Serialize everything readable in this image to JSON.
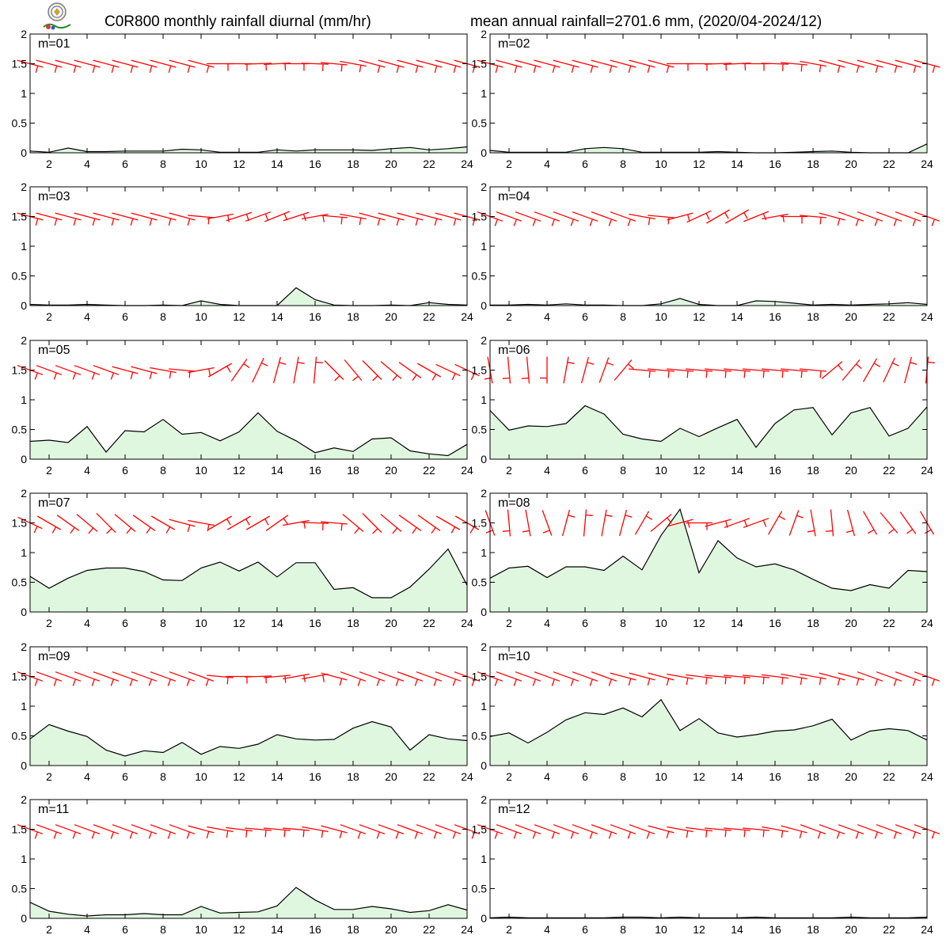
{
  "title_left": "C0R800 monthly rainfall diurnal (mm/hr)",
  "title_right": "mean annual rainfall=2701.6 mm, (2020/04-2024/12)",
  "colors": {
    "rain_fill": "#dff7df",
    "rain_line": "#000000",
    "wind": "#ff0000",
    "frame": "#000000"
  },
  "chart_data": [
    {
      "type": "area",
      "panel_label": "m=01",
      "x": [
        1,
        2,
        3,
        4,
        5,
        6,
        7,
        8,
        9,
        10,
        11,
        12,
        13,
        14,
        15,
        16,
        17,
        18,
        19,
        20,
        21,
        22,
        23,
        24
      ],
      "values": [
        0.03,
        0.01,
        0.08,
        0.02,
        0.02,
        0.03,
        0.03,
        0.03,
        0.06,
        0.05,
        0.01,
        0.01,
        0.01,
        0.05,
        0.03,
        0.05,
        0.05,
        0.05,
        0.04,
        0.07,
        0.09,
        0.05,
        0.07,
        0.1
      ],
      "ylim": [
        0,
        2
      ],
      "xlim": [
        1,
        24
      ],
      "yticks": [
        0,
        0.5,
        1,
        1.5,
        2
      ],
      "xticks": [
        2,
        4,
        6,
        8,
        10,
        12,
        14,
        16,
        18,
        20,
        22,
        24
      ],
      "wind_dir": [
        105,
        105,
        105,
        105,
        105,
        105,
        105,
        105,
        105,
        105,
        90,
        90,
        88,
        87,
        90,
        92,
        95,
        100,
        105,
        105,
        105,
        105,
        105,
        105
      ]
    },
    {
      "type": "area",
      "panel_label": "m=02",
      "x": [
        1,
        2,
        3,
        4,
        5,
        6,
        7,
        8,
        9,
        10,
        11,
        12,
        13,
        14,
        15,
        16,
        17,
        18,
        19,
        20,
        21,
        22,
        23,
        24
      ],
      "values": [
        0.04,
        0.01,
        0.01,
        0.01,
        0.01,
        0.07,
        0.09,
        0.07,
        0.01,
        0.01,
        0.01,
        0.01,
        0.02,
        0.01,
        0.0,
        0.0,
        0.01,
        0.02,
        0.03,
        0.01,
        0.0,
        0.0,
        0.0,
        0.15
      ],
      "ylim": [
        0,
        2
      ],
      "xlim": [
        1,
        24
      ],
      "yticks": [
        0,
        0.5,
        1,
        1.5,
        2
      ],
      "xticks": [
        2,
        4,
        6,
        8,
        10,
        12,
        14,
        16,
        18,
        20,
        22,
        24
      ],
      "wind_dir": [
        105,
        105,
        105,
        105,
        105,
        105,
        105,
        105,
        105,
        105,
        90,
        90,
        88,
        87,
        90,
        92,
        95,
        100,
        105,
        105,
        105,
        105,
        105,
        105
      ]
    },
    {
      "type": "area",
      "panel_label": "m=03",
      "x": [
        1,
        2,
        3,
        4,
        5,
        6,
        7,
        8,
        9,
        10,
        11,
        12,
        13,
        14,
        15,
        16,
        17,
        18,
        19,
        20,
        21,
        22,
        23,
        24
      ],
      "values": [
        0.02,
        0.01,
        0.01,
        0.02,
        0.01,
        0.0,
        0.0,
        0.01,
        0.0,
        0.08,
        0.02,
        0.0,
        0.0,
        0.0,
        0.3,
        0.1,
        0.01,
        0.0,
        0.0,
        0.01,
        0.0,
        0.05,
        0.02,
        0.01
      ],
      "ylim": [
        0,
        2
      ],
      "xlim": [
        1,
        24
      ],
      "yticks": [
        0,
        0.5,
        1,
        1.5,
        2
      ],
      "xticks": [
        2,
        4,
        6,
        8,
        10,
        12,
        14,
        16,
        18,
        20,
        22,
        24
      ],
      "wind_dir": [
        105,
        105,
        105,
        105,
        105,
        105,
        105,
        105,
        105,
        95,
        80,
        72,
        70,
        68,
        72,
        80,
        95,
        100,
        105,
        105,
        105,
        105,
        105,
        105
      ]
    },
    {
      "type": "area",
      "panel_label": "m=04",
      "x": [
        1,
        2,
        3,
        4,
        5,
        6,
        7,
        8,
        9,
        10,
        11,
        12,
        13,
        14,
        15,
        16,
        17,
        18,
        19,
        20,
        21,
        22,
        23,
        24
      ],
      "values": [
        0.01,
        0.01,
        0.02,
        0.01,
        0.03,
        0.01,
        0.01,
        0.0,
        0.0,
        0.03,
        0.12,
        0.02,
        0.0,
        0.0,
        0.08,
        0.07,
        0.04,
        0.01,
        0.02,
        0.01,
        0.02,
        0.03,
        0.05,
        0.02
      ],
      "ylim": [
        0,
        2
      ],
      "xlim": [
        1,
        24
      ],
      "yticks": [
        0,
        0.5,
        1,
        1.5,
        2
      ],
      "xticks": [
        2,
        4,
        6,
        8,
        10,
        12,
        14,
        16,
        18,
        20,
        22,
        24
      ],
      "wind_dir": [
        110,
        110,
        110,
        110,
        110,
        110,
        110,
        110,
        100,
        95,
        75,
        65,
        60,
        60,
        68,
        80,
        90,
        95,
        105,
        110,
        110,
        110,
        110,
        110
      ]
    },
    {
      "type": "area",
      "panel_label": "m=05",
      "x": [
        1,
        2,
        3,
        4,
        5,
        6,
        7,
        8,
        9,
        10,
        11,
        12,
        13,
        14,
        15,
        16,
        17,
        18,
        19,
        20,
        21,
        22,
        23,
        24
      ],
      "values": [
        0.3,
        0.32,
        0.28,
        0.55,
        0.12,
        0.48,
        0.46,
        0.67,
        0.42,
        0.45,
        0.31,
        0.46,
        0.78,
        0.47,
        0.31,
        0.11,
        0.19,
        0.13,
        0.34,
        0.36,
        0.14,
        0.09,
        0.06,
        0.25
      ],
      "ylim": [
        0,
        2
      ],
      "xlim": [
        1,
        24
      ],
      "yticks": [
        0,
        0.5,
        1,
        1.5,
        2
      ],
      "xticks": [
        2,
        4,
        6,
        8,
        10,
        12,
        14,
        16,
        18,
        20,
        22,
        24
      ],
      "wind_dir": [
        110,
        110,
        110,
        110,
        110,
        105,
        105,
        100,
        95,
        80,
        60,
        35,
        25,
        15,
        10,
        5,
        135,
        140,
        135,
        130,
        125,
        120,
        115,
        115
      ]
    },
    {
      "type": "area",
      "panel_label": "m=06",
      "x": [
        1,
        2,
        3,
        4,
        5,
        6,
        7,
        8,
        9,
        10,
        11,
        12,
        13,
        14,
        15,
        16,
        17,
        18,
        19,
        20,
        21,
        22,
        23,
        24
      ],
      "values": [
        0.82,
        0.49,
        0.56,
        0.55,
        0.6,
        0.9,
        0.76,
        0.42,
        0.34,
        0.3,
        0.52,
        0.38,
        0.53,
        0.67,
        0.2,
        0.6,
        0.83,
        0.87,
        0.41,
        0.78,
        0.87,
        0.39,
        0.52,
        0.88
      ],
      "ylim": [
        0,
        2
      ],
      "xlim": [
        1,
        24
      ],
      "yticks": [
        0,
        0.5,
        1,
        1.5,
        2
      ],
      "xticks": [
        2,
        4,
        6,
        8,
        10,
        12,
        14,
        16,
        18,
        20,
        22,
        24
      ],
      "wind_dir": [
        170,
        175,
        175,
        180,
        10,
        15,
        20,
        40,
        95,
        95,
        95,
        95,
        95,
        95,
        95,
        95,
        95,
        95,
        50,
        40,
        30,
        25,
        15,
        5
      ]
    },
    {
      "type": "area",
      "panel_label": "m=07",
      "x": [
        1,
        2,
        3,
        4,
        5,
        6,
        7,
        8,
        9,
        10,
        11,
        12,
        13,
        14,
        15,
        16,
        17,
        18,
        19,
        20,
        21,
        22,
        23,
        24
      ],
      "values": [
        0.6,
        0.4,
        0.57,
        0.7,
        0.74,
        0.74,
        0.68,
        0.54,
        0.53,
        0.74,
        0.84,
        0.69,
        0.84,
        0.59,
        0.83,
        0.83,
        0.38,
        0.41,
        0.24,
        0.24,
        0.42,
        0.72,
        1.06,
        0.45
      ],
      "ylim": [
        0,
        2
      ],
      "xlim": [
        1,
        24
      ],
      "yticks": [
        0,
        0.5,
        1,
        1.5,
        2
      ],
      "xticks": [
        2,
        4,
        6,
        8,
        10,
        12,
        14,
        16,
        18,
        20,
        22,
        24
      ],
      "wind_dir": [
        115,
        120,
        125,
        130,
        135,
        130,
        125,
        120,
        105,
        100,
        60,
        60,
        60,
        55,
        80,
        92,
        95,
        130,
        135,
        130,
        125,
        125,
        120,
        120
      ]
    },
    {
      "type": "area",
      "panel_label": "m=08",
      "x": [
        1,
        2,
        3,
        4,
        5,
        6,
        7,
        8,
        9,
        10,
        11,
        12,
        13,
        14,
        15,
        16,
        17,
        18,
        19,
        20,
        21,
        22,
        23,
        24
      ],
      "values": [
        0.57,
        0.74,
        0.77,
        0.58,
        0.76,
        0.76,
        0.7,
        0.94,
        0.71,
        1.29,
        1.73,
        0.66,
        1.2,
        0.91,
        0.76,
        0.81,
        0.71,
        0.55,
        0.4,
        0.36,
        0.46,
        0.4,
        0.7,
        0.68
      ],
      "ylim": [
        0,
        2
      ],
      "xlim": [
        1,
        24
      ],
      "yticks": [
        0,
        0.5,
        1,
        1.5,
        2
      ],
      "xticks": [
        2,
        4,
        6,
        8,
        10,
        12,
        14,
        16,
        18,
        20,
        22,
        24
      ],
      "wind_dir": [
        160,
        175,
        170,
        160,
        15,
        5,
        10,
        15,
        30,
        50,
        75,
        90,
        75,
        70,
        70,
        30,
        20,
        170,
        175,
        165,
        150,
        140,
        145,
        150
      ]
    },
    {
      "type": "area",
      "panel_label": "m=09",
      "x": [
        1,
        2,
        3,
        4,
        5,
        6,
        7,
        8,
        9,
        10,
        11,
        12,
        13,
        14,
        15,
        16,
        17,
        18,
        19,
        20,
        21,
        22,
        23,
        24
      ],
      "values": [
        0.45,
        0.69,
        0.58,
        0.49,
        0.26,
        0.16,
        0.25,
        0.22,
        0.39,
        0.19,
        0.32,
        0.29,
        0.36,
        0.52,
        0.45,
        0.43,
        0.44,
        0.63,
        0.74,
        0.65,
        0.26,
        0.52,
        0.45,
        0.42
      ],
      "ylim": [
        0,
        2
      ],
      "xlim": [
        1,
        24
      ],
      "yticks": [
        0,
        0.5,
        1,
        1.5,
        2
      ],
      "xticks": [
        2,
        4,
        6,
        8,
        10,
        12,
        14,
        16,
        18,
        20,
        22,
        24
      ],
      "wind_dir": [
        110,
        110,
        110,
        110,
        110,
        110,
        110,
        110,
        110,
        110,
        95,
        90,
        88,
        85,
        80,
        80,
        105,
        110,
        110,
        110,
        110,
        110,
        110,
        110
      ]
    },
    {
      "type": "area",
      "panel_label": "m=10",
      "x": [
        1,
        2,
        3,
        4,
        5,
        6,
        7,
        8,
        9,
        10,
        11,
        12,
        13,
        14,
        15,
        16,
        17,
        18,
        19,
        20,
        21,
        22,
        23,
        24
      ],
      "values": [
        0.49,
        0.55,
        0.38,
        0.56,
        0.77,
        0.89,
        0.86,
        0.97,
        0.82,
        1.11,
        0.59,
        0.79,
        0.55,
        0.48,
        0.52,
        0.58,
        0.6,
        0.67,
        0.78,
        0.43,
        0.58,
        0.62,
        0.59,
        0.43
      ],
      "ylim": [
        0,
        2
      ],
      "xlim": [
        1,
        24
      ],
      "yticks": [
        0,
        0.5,
        1,
        1.5,
        2
      ],
      "xticks": [
        2,
        4,
        6,
        8,
        10,
        12,
        14,
        16,
        18,
        20,
        22,
        24
      ],
      "wind_dir": [
        110,
        110,
        110,
        110,
        110,
        110,
        110,
        105,
        105,
        105,
        100,
        97,
        95,
        95,
        95,
        97,
        100,
        100,
        105,
        105,
        110,
        110,
        110,
        110
      ]
    },
    {
      "type": "area",
      "panel_label": "m=11",
      "x": [
        1,
        2,
        3,
        4,
        5,
        6,
        7,
        8,
        9,
        10,
        11,
        12,
        13,
        14,
        15,
        16,
        17,
        18,
        19,
        20,
        21,
        22,
        23,
        24
      ],
      "values": [
        0.27,
        0.12,
        0.07,
        0.04,
        0.06,
        0.06,
        0.08,
        0.06,
        0.06,
        0.2,
        0.09,
        0.1,
        0.11,
        0.21,
        0.52,
        0.31,
        0.15,
        0.15,
        0.2,
        0.16,
        0.1,
        0.13,
        0.23,
        0.14
      ],
      "ylim": [
        0,
        2
      ],
      "xlim": [
        1,
        24
      ],
      "yticks": [
        0,
        0.5,
        1,
        1.5,
        2
      ],
      "xticks": [
        2,
        4,
        6,
        8,
        10,
        12,
        14,
        16,
        18,
        20,
        22,
        24
      ],
      "wind_dir": [
        110,
        110,
        110,
        110,
        110,
        110,
        110,
        110,
        110,
        105,
        100,
        97,
        95,
        95,
        95,
        100,
        105,
        110,
        110,
        110,
        110,
        110,
        110,
        110
      ]
    },
    {
      "type": "area",
      "panel_label": "m=12",
      "x": [
        1,
        2,
        3,
        4,
        5,
        6,
        7,
        8,
        9,
        10,
        11,
        12,
        13,
        14,
        15,
        16,
        17,
        18,
        19,
        20,
        21,
        22,
        23,
        24
      ],
      "values": [
        0.01,
        0.02,
        0.01,
        0.01,
        0.01,
        0.01,
        0.01,
        0.02,
        0.02,
        0.01,
        0.02,
        0.01,
        0.01,
        0.01,
        0.02,
        0.01,
        0.01,
        0.01,
        0.01,
        0.02,
        0.01,
        0.01,
        0.01,
        0.02
      ],
      "ylim": [
        0,
        2
      ],
      "xlim": [
        1,
        24
      ],
      "yticks": [
        0,
        0.5,
        1,
        1.5,
        2
      ],
      "xticks": [
        2,
        4,
        6,
        8,
        10,
        12,
        14,
        16,
        18,
        20,
        22,
        24
      ],
      "wind_dir": [
        110,
        110,
        110,
        110,
        110,
        110,
        110,
        110,
        110,
        105,
        100,
        97,
        95,
        95,
        95,
        100,
        105,
        110,
        110,
        110,
        110,
        110,
        110,
        110
      ]
    }
  ]
}
